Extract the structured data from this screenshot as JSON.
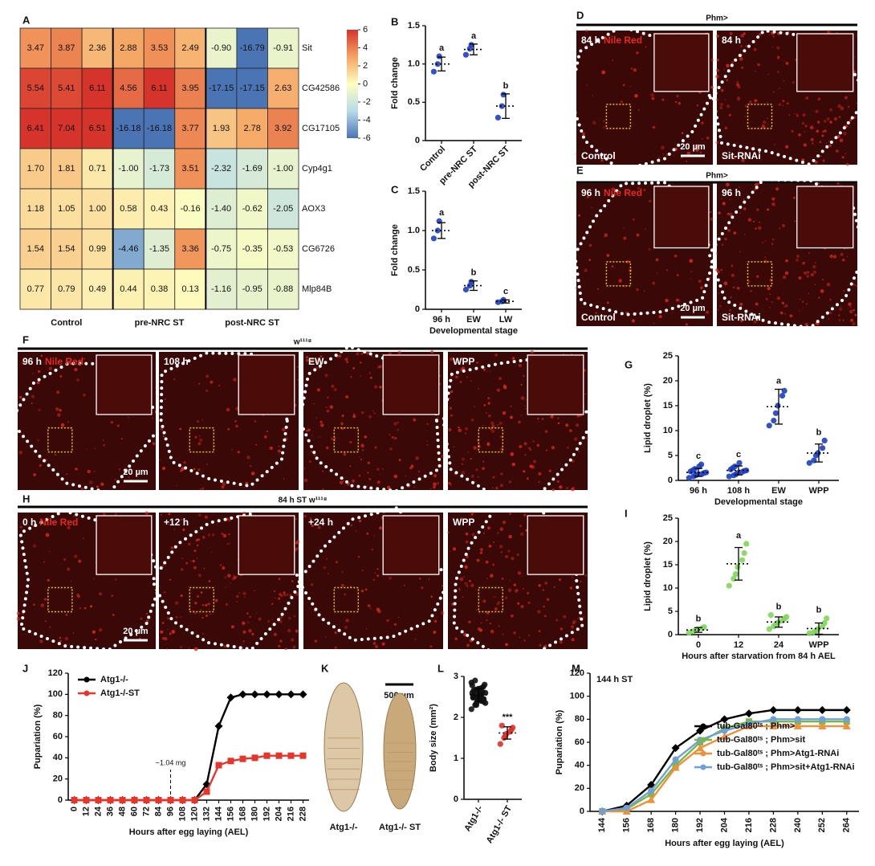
{
  "chart_data": [
    {
      "type": "heatmap",
      "panel": "A",
      "rows": [
        "Sit",
        "CG42586",
        "CG17105",
        "Cyp4g1",
        "AOX3",
        "CG6726",
        "Mlp84B"
      ],
      "groups": [
        "Control",
        "pre-NRC ST",
        "post-NRC ST"
      ],
      "values": [
        [
          3.47,
          3.87,
          2.36,
          2.88,
          3.53,
          2.49,
          -0.9,
          -16.79,
          -0.91
        ],
        [
          5.54,
          5.41,
          6.11,
          4.56,
          6.11,
          3.95,
          -17.15,
          -17.15,
          2.63
        ],
        [
          6.41,
          7.04,
          6.51,
          -16.18,
          -16.18,
          3.77,
          1.93,
          2.78,
          3.92
        ],
        [
          1.7,
          1.81,
          0.71,
          -1,
          -1.73,
          3.51,
          -2.32,
          -1.69,
          -1
        ],
        [
          1.18,
          1.05,
          1,
          0.58,
          0.43,
          -0.16,
          -1.4,
          -0.62,
          -2.05
        ],
        [
          1.54,
          1.54,
          0.99,
          -4.46,
          -1.35,
          3.36,
          -0.75,
          -0.35,
          -0.53
        ],
        [
          0.77,
          0.79,
          0.49,
          0.44,
          0.38,
          0.13,
          -1.16,
          -0.95,
          -0.88
        ]
      ],
      "value_labels": [
        [
          "3.47",
          "3.87",
          "2.36",
          "2.88",
          "3.53",
          "2.49",
          "-0.90",
          "-16.79",
          "-0.91"
        ],
        [
          "5.54",
          "5.41",
          "6.11",
          "4.56",
          "6.11",
          "3.95",
          "-17.15",
          "-17.15",
          "2.63"
        ],
        [
          "6.41",
          "7.04",
          "6.51",
          "-16.18",
          "-16.18",
          "3.77",
          "1.93",
          "2.78",
          "3.92"
        ],
        [
          "1.70",
          "1.81",
          "0.71",
          "-1.00",
          "-1.73",
          "3.51",
          "-2.32",
          "-1.69",
          "-1.00"
        ],
        [
          "1.18",
          "1.05",
          "1.00",
          "0.58",
          "0.43",
          "-0.16",
          "-1.40",
          "-0.62",
          "-2.05"
        ],
        [
          "1.54",
          "1.54",
          "0.99",
          "-4.46",
          "-1.35",
          "3.36",
          "-0.75",
          "-0.35",
          "-0.53"
        ],
        [
          "0.77",
          "0.79",
          "0.49",
          "0.44",
          "0.38",
          "0.13",
          "-1.16",
          "-0.95",
          "-0.88"
        ]
      ],
      "colorscale": [
        "#4a74b4",
        "#b8dbe9",
        "#fefec0",
        "#f5a462",
        "#d6342b"
      ],
      "colorbar": {
        "lim": [
          -6,
          6
        ],
        "ticks": [
          6,
          4,
          2,
          0,
          -2,
          -4,
          -6
        ]
      }
    },
    {
      "type": "dot",
      "panel": "B",
      "ylabel": "Fold change",
      "color": "#1d3fc4",
      "categories": [
        "Control",
        "pre-NRC ST",
        "post-NRC ST"
      ],
      "points": [
        [
          0.9,
          1.0,
          1.1
        ],
        [
          1.12,
          1.2,
          1.25
        ],
        [
          0.3,
          0.45,
          0.6
        ]
      ],
      "means": [
        1.0,
        1.19,
        0.45
      ],
      "sd": [
        0.09,
        0.07,
        0.16
      ],
      "letters": [
        "a",
        "a",
        "b"
      ],
      "ylim": [
        0,
        1.5
      ],
      "yticks": [
        0,
        0.5,
        {
          "value": 1,
          "label": "1.0"
        },
        1.5
      ]
    },
    {
      "type": "dot",
      "panel": "C",
      "ylabel": "Fold change",
      "xlabel": "Developmental stage",
      "color": "#1d3fc4",
      "categories": [
        "96 h",
        "EW",
        "LW"
      ],
      "points": [
        [
          0.9,
          1.0,
          1.12
        ],
        [
          0.25,
          0.3,
          0.35
        ],
        [
          0.09,
          0.1,
          0.12
        ]
      ],
      "means": [
        1.0,
        0.3,
        0.1
      ],
      "sd": [
        0.1,
        0.06,
        0.02
      ],
      "letters": [
        "a",
        "b",
        "c"
      ],
      "ylim": [
        0,
        1.5
      ],
      "yticks": [
        0,
        0.5,
        {
          "value": 1,
          "label": "1.0"
        },
        1.5
      ]
    },
    {
      "type": "dot",
      "panel": "G",
      "ylabel": "Lipid droplet (%)",
      "xlabel": "Developmental stage",
      "color": "#1d3fc4",
      "categories": [
        "96 h",
        "108 h",
        "EW",
        "WPP"
      ],
      "points": [
        [
          0.5,
          0.8,
          1,
          1.2,
          1.3,
          1.5,
          1.6,
          1.8,
          2,
          2.3,
          2.8,
          3.2
        ],
        [
          0.8,
          1,
          1.2,
          1.5,
          1.7,
          1.9,
          2,
          2.2,
          2.5,
          2.8,
          3.5
        ],
        [
          11,
          12,
          13.5,
          15,
          17,
          18
        ],
        [
          3.5,
          4,
          5,
          5.5,
          6.5,
          8
        ]
      ],
      "means": [
        1.6,
        2,
        14.8,
        5.5
      ],
      "sd": [
        0.8,
        0.9,
        3.5,
        1.8
      ],
      "letters": [
        "c",
        "c",
        "a",
        "b"
      ],
      "ylim": [
        0,
        25
      ],
      "yticks": [
        0,
        5,
        10,
        15,
        20,
        25
      ]
    },
    {
      "type": "dot",
      "panel": "I",
      "ylabel": "Lipid droplet (%)",
      "xlabel": "Hours after starvation from 84 h AEL",
      "color": "#7fd65a",
      "categories": [
        "0",
        "12",
        "24",
        "WPP"
      ],
      "points": [
        [
          0.4,
          0.7,
          1,
          1.2,
          1.4,
          1.6
        ],
        [
          10.5,
          12,
          13,
          14.5,
          16,
          17.5,
          19.5
        ],
        [
          1.2,
          1.8,
          2.2,
          2.6,
          3,
          3.4,
          3.8,
          4.2
        ],
        [
          0.3,
          0.5,
          0.8,
          1.2,
          1.8,
          2.5,
          3.5
        ]
      ],
      "means": [
        1,
        15.2,
        2.7,
        1.3
      ],
      "sd": [
        0.5,
        3.5,
        1.1,
        1.2
      ],
      "letters": [
        "b",
        "a",
        "b",
        "b"
      ],
      "ylim": [
        0,
        25
      ],
      "yticks": [
        0,
        5,
        10,
        15,
        20,
        25
      ]
    },
    {
      "type": "line",
      "panel": "J",
      "xlabel": "Hours after egg laying (AEL)",
      "ylabel": "Pupariation (%)",
      "x": [
        0,
        12,
        24,
        36,
        48,
        60,
        72,
        84,
        96,
        108,
        120,
        132,
        144,
        156,
        168,
        180,
        192,
        204,
        216,
        228
      ],
      "series": [
        {
          "name": "Atg1-/-",
          "color": "#000000",
          "marker": "diamond",
          "values": [
            0,
            0,
            0,
            0,
            0,
            0,
            0,
            0,
            0,
            0,
            0,
            15,
            70,
            97,
            100,
            100,
            100,
            100,
            100,
            100
          ]
        },
        {
          "name": "Atg1-/-ST",
          "color": "#e8352b",
          "marker": "square",
          "values": [
            0,
            0,
            0,
            0,
            0,
            0,
            0,
            0,
            0,
            0,
            0,
            8,
            33,
            37,
            39,
            40,
            42,
            42,
            42,
            42
          ]
        }
      ],
      "annotation": {
        "text": "~1.04 mg",
        "x": 96
      },
      "legend": "upper-left",
      "xlim": [
        -6,
        234
      ],
      "ylim": [
        0,
        120
      ],
      "xticks": [
        0,
        12,
        24,
        36,
        48,
        60,
        72,
        84,
        96,
        108,
        120,
        132,
        144,
        156,
        168,
        180,
        192,
        204,
        216,
        228
      ],
      "yticks": [
        0,
        20,
        40,
        60,
        80,
        100,
        120
      ]
    },
    {
      "type": "dot",
      "panel": "L",
      "ylabel": "Body size (mm²)",
      "colors": [
        "#111111",
        "#e0302a"
      ],
      "categories": [
        "Atg1-/-",
        "Atg1-/- ST"
      ],
      "points": [
        [
          2.2,
          2.3,
          2.35,
          2.4,
          2.4,
          2.45,
          2.45,
          2.5,
          2.5,
          2.5,
          2.55,
          2.55,
          2.6,
          2.6,
          2.6,
          2.65,
          2.65,
          2.7,
          2.7,
          2.75,
          2.8,
          2.85,
          2.9,
          2.3,
          2.45,
          2.55,
          2.62,
          2.38,
          2.48,
          2.58,
          2.68,
          2.52,
          2.42,
          2.72,
          2.35,
          2.78
        ],
        [
          1.35,
          1.5,
          1.55,
          1.6,
          1.65,
          1.7,
          1.75,
          1.8
        ]
      ],
      "means": [
        2.55,
        1.62
      ],
      "sd": [
        0.15,
        0.15
      ],
      "letters": [
        null,
        "***"
      ],
      "ylim": [
        0,
        3
      ],
      "yticks": [
        0,
        1,
        2,
        3
      ]
    },
    {
      "type": "line",
      "panel": "M",
      "annotation_text": "144 h ST",
      "xlabel": "Hours after egg laying (AEL)",
      "ylabel": "Pupariation (%)",
      "x": [
        144,
        156,
        168,
        180,
        192,
        204,
        216,
        228,
        240,
        252,
        264
      ],
      "series": [
        {
          "name": "tub-Gal80ᵗˢ ; Phm>",
          "color": "#000000",
          "marker": "diamond",
          "values": [
            0,
            5,
            23,
            55,
            70,
            80,
            85,
            88,
            88,
            88,
            88
          ]
        },
        {
          "name": "tub-Gal80ᵗˢ ; Phm>sit",
          "color": "#7ab648",
          "marker": "square",
          "values": [
            0,
            2,
            15,
            40,
            60,
            72,
            78,
            78,
            78,
            78,
            78
          ]
        },
        {
          "name": "tub-Gal80ᵗˢ ; Phm>Atg1-RNAi",
          "color": "#f0903a",
          "marker": "triangle",
          "values": [
            0,
            0,
            10,
            38,
            55,
            65,
            74,
            74,
            74,
            74,
            74
          ]
        },
        {
          "name": "tub-Gal80ᵗˢ ; Phm>sit+Atg1-RNAi",
          "color": "#6fa0d8",
          "marker": "circle",
          "values": [
            0,
            3,
            18,
            45,
            62,
            70,
            76,
            80,
            80,
            80,
            80
          ]
        }
      ],
      "legend": "lower-right",
      "xlim": [
        138,
        270
      ],
      "ylim": [
        0,
        120
      ],
      "xticks": [
        144,
        156,
        168,
        180,
        192,
        204,
        216,
        228,
        240,
        252,
        264
      ],
      "yticks": [
        0,
        20,
        40,
        60,
        80,
        100,
        120
      ]
    }
  ],
  "image_panels": [
    {
      "panel": "D",
      "header": "Phm>",
      "images": [
        {
          "time": "84 h",
          "stain": "Nile Red",
          "genotype": "Control",
          "scale_bar": "20 µm"
        },
        {
          "time": "84 h",
          "genotype": "Sit-RNAi"
        }
      ]
    },
    {
      "panel": "E",
      "header": "Phm>",
      "images": [
        {
          "time": "96 h",
          "stain": "Nile Red",
          "genotype": "Control",
          "scale_bar": "20 µm"
        },
        {
          "time": "96 h",
          "genotype": "Sit-RNAi"
        }
      ]
    },
    {
      "panel": "F",
      "header": "w¹¹¹⁸",
      "images": [
        {
          "time": "96 h",
          "stain": "Nile Red",
          "scale_bar": "20 µm"
        },
        {
          "time": "108 h"
        },
        {
          "time": "EW"
        },
        {
          "time": "WPP"
        }
      ]
    },
    {
      "panel": "H",
      "header": "84 h ST w¹¹¹⁸",
      "images": [
        {
          "time": "0 h",
          "stain": "Nile Red",
          "scale_bar": "20 µm"
        },
        {
          "time": "+12 h"
        },
        {
          "time": "+24 h"
        },
        {
          "time": "WPP"
        }
      ]
    }
  ],
  "photo_panel": {
    "panel": "K",
    "scale_bar": "500 µm",
    "labels": [
      "Atg1-/-",
      "Atg1-/- ST"
    ]
  }
}
